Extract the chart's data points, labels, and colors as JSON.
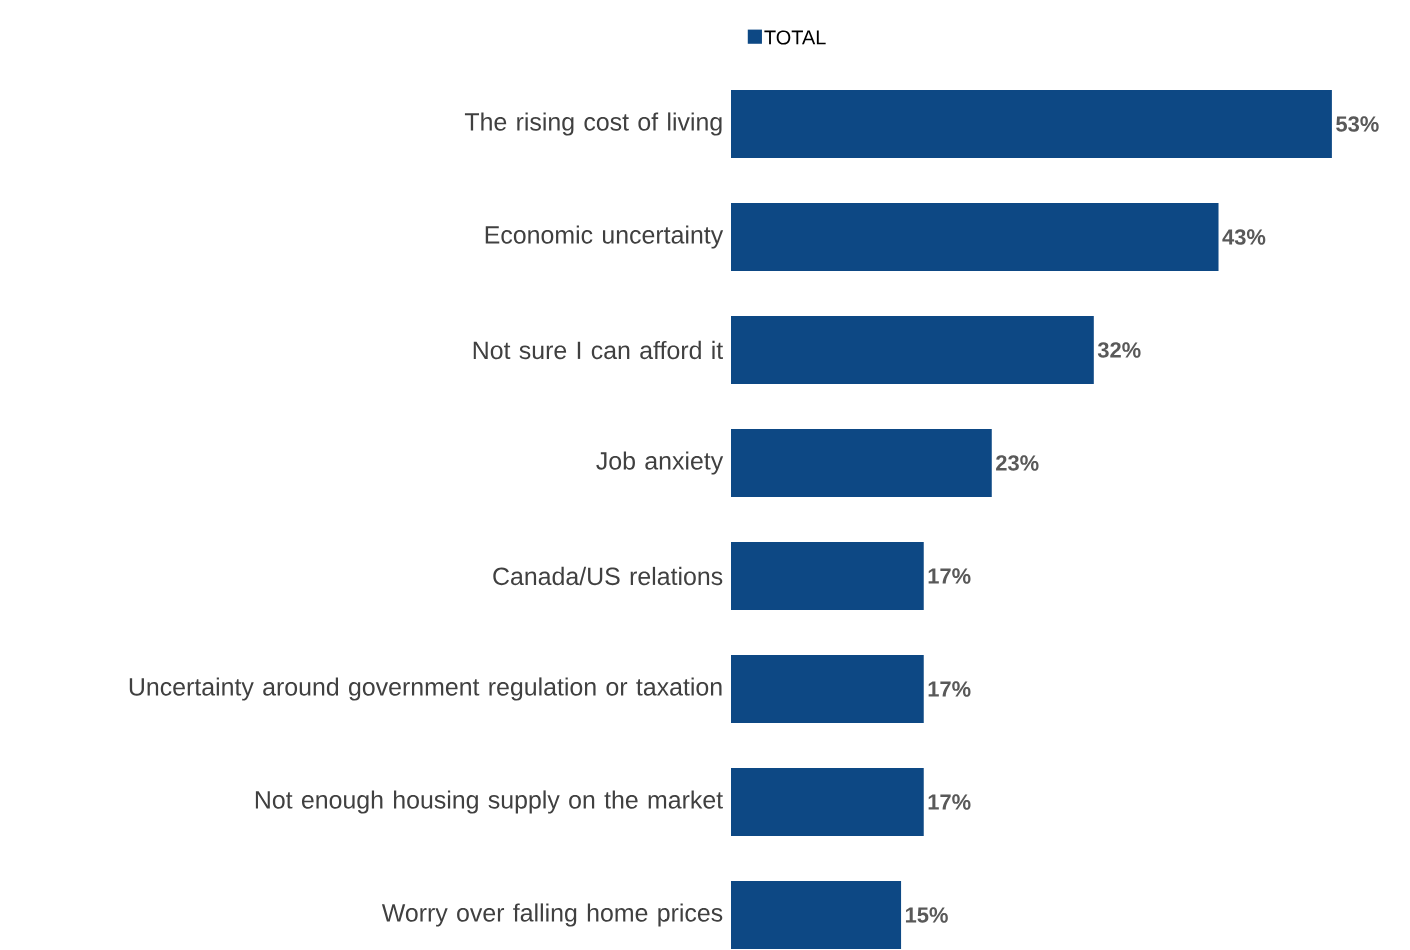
{
  "chart_data": {
    "type": "bar",
    "orientation": "horizontal",
    "categories": [
      "The rising cost of living",
      "Economic uncertainty",
      "Not sure I can afford it",
      "Job anxiety",
      "Canada/US relations",
      "Uncertainty around government regulation or taxation",
      "Not enough housing supply on the market",
      "Worry over falling home prices"
    ],
    "series": [
      {
        "name": "TOTAL",
        "color": "#0d4884",
        "values": [
          53,
          43,
          32,
          23,
          17,
          17,
          17,
          15
        ],
        "value_labels": [
          "53%",
          "43%",
          "32%",
          "23%",
          "17%",
          "17%",
          "17%",
          "15%"
        ]
      }
    ],
    "legend": "top",
    "tick_labels": "y"
  }
}
